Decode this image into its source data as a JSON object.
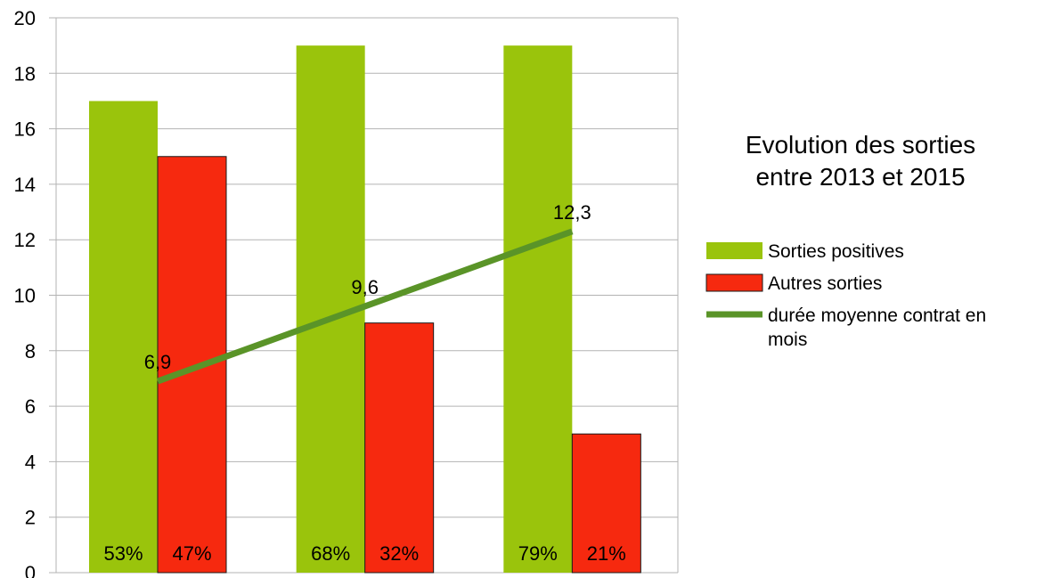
{
  "chart_data": {
    "type": "bar",
    "title": "Evolution des sorties\nentre 2013 et 2015",
    "categories": [
      "",
      "",
      ""
    ],
    "series": [
      {
        "name": "Sorties positives",
        "type": "bar",
        "color": "#9ac40c",
        "values": [
          17,
          19,
          19
        ],
        "labels": [
          "53%",
          "68%",
          "79%"
        ]
      },
      {
        "name": "Autres sorties",
        "type": "bar",
        "color": "#f6290f",
        "values": [
          15,
          9,
          5
        ],
        "labels": [
          "47%",
          "32%",
          "21%"
        ]
      },
      {
        "name": "durée moyenne contrat en mois",
        "type": "line",
        "color": "#5a9428",
        "values": [
          6.9,
          9.6,
          12.3
        ],
        "labels": [
          "6,9",
          "9,6",
          "12,3"
        ]
      }
    ],
    "ylim": [
      0,
      20
    ],
    "yticks": [
      0,
      2,
      4,
      6,
      8,
      10,
      12,
      14,
      16,
      18,
      20
    ],
    "xlabel": "",
    "ylabel": "",
    "grid": true,
    "legend": "right"
  }
}
